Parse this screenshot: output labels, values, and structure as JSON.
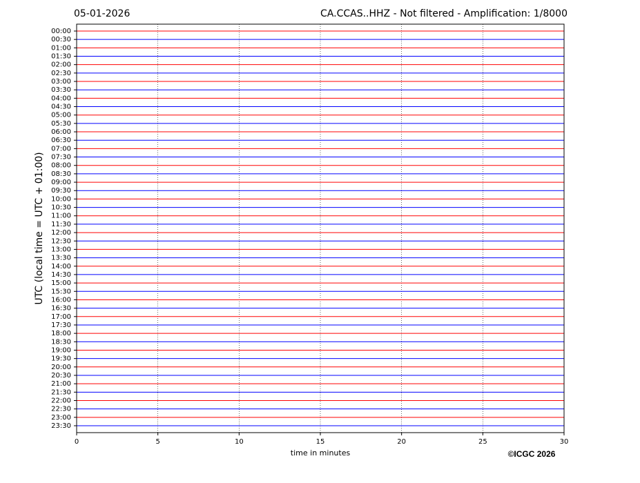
{
  "chart_data": {
    "type": "helicorder",
    "date": "05-01-2026",
    "title": "CA.CCAS..HHZ - Not filtered - Amplification: 1/8000",
    "ylabel": "UTC (local time = UTC + 01:00)",
    "xlabel": "time in minutes",
    "credit": "©ICGC 2026",
    "categories": [
      "00:00",
      "00:30",
      "01:00",
      "01:30",
      "02:00",
      "02:30",
      "03:00",
      "03:30",
      "04:00",
      "04:30",
      "05:00",
      "05:30",
      "06:00",
      "06:30",
      "07:00",
      "07:30",
      "08:00",
      "08:30",
      "09:00",
      "09:30",
      "10:00",
      "10:30",
      "11:00",
      "11:30",
      "12:00",
      "12:30",
      "13:00",
      "13:30",
      "14:00",
      "14:30",
      "15:00",
      "15:30",
      "16:00",
      "16:30",
      "17:00",
      "17:30",
      "18:00",
      "18:30",
      "19:00",
      "19:30",
      "20:00",
      "20:30",
      "21:00",
      "21:30",
      "22:00",
      "22:30",
      "23:00",
      "23:30"
    ],
    "colors": [
      "#ff0000",
      "#0000ff"
    ],
    "xlim": [
      0,
      30
    ],
    "xticks": [
      0,
      5,
      10,
      15,
      20,
      25,
      30
    ],
    "grid": true
  }
}
